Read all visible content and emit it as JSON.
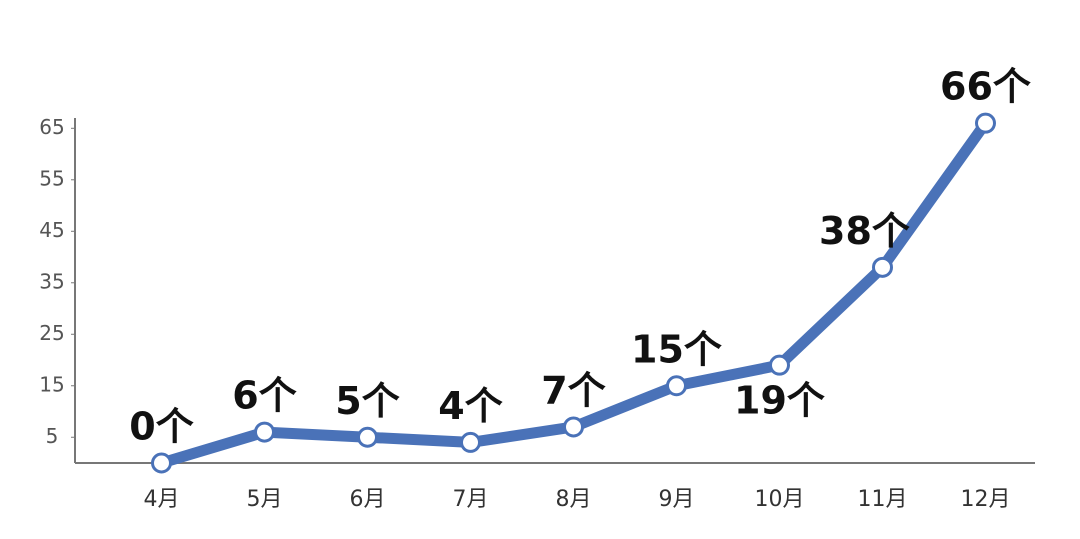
{
  "chart_data": {
    "type": "line",
    "categories": [
      "4月",
      "5月",
      "6月",
      "7月",
      "8月",
      "9月",
      "10月",
      "11月",
      "12月"
    ],
    "series": [
      {
        "color": "#4a72b8",
        "values": [
          0,
          6,
          5,
          4,
          7,
          15,
          19,
          38,
          66
        ],
        "value_labels": [
          "0个",
          "6个",
          "5个",
          "4个",
          "7个",
          "15个",
          "19个",
          "38个",
          "66个"
        ]
      }
    ],
    "ylim": [
      0,
      67
    ],
    "yticks": [
      5,
      15,
      25,
      35,
      45,
      55,
      65
    ]
  }
}
